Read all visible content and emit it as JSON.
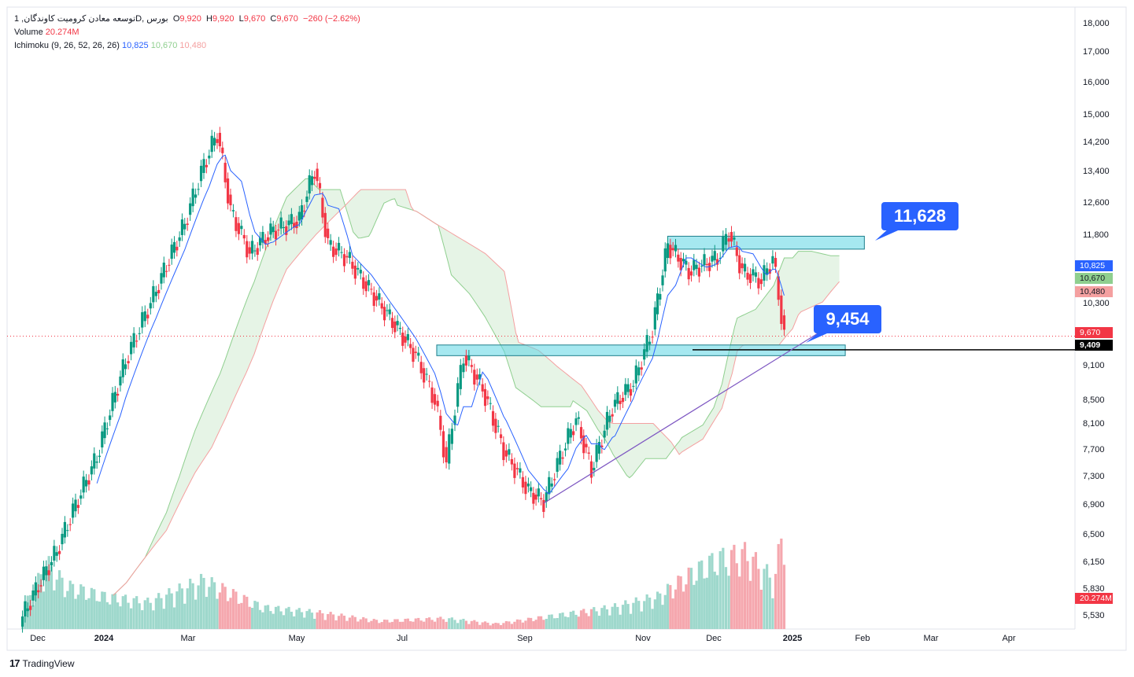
{
  "header": {
    "symbol": "توسعه معادن کرومیت کاوندگان, 1D, بورس",
    "open_label": "O",
    "open": "9,920",
    "high_label": "H",
    "high": "9,920",
    "low_label": "L",
    "low": "9,670",
    "close_label": "C",
    "close": "9,670",
    "change": "−260 (−2.62%)",
    "volume_label": "Volume",
    "volume_value": "20.274M",
    "ichimoku_label": "Ichimoku (9, 26, 52, 26, 26)",
    "ichimoku_values": [
      "10,825",
      "10,670",
      "10,480"
    ]
  },
  "chart_data": {
    "type": "candlestick",
    "title": "",
    "y_ticks": [
      "18,000",
      "17,000",
      "16,000",
      "15,000",
      "14,200",
      "13,400",
      "12,600",
      "11,800",
      "10,300",
      "9,100",
      "8,500",
      "8,100",
      "7,700",
      "7,300",
      "6,900",
      "6,500",
      "6,150",
      "5,830",
      "5,530"
    ],
    "x_ticks": [
      "Dec",
      "2024",
      "Mar",
      "May",
      "Jul",
      "Sep",
      "Nov",
      "Dec",
      "2025",
      "Feb",
      "Mar",
      "Apr"
    ],
    "ylim": [
      5530,
      18000
    ],
    "y_scale": "log",
    "price_series": [
      {
        "date": "2023-11-27",
        "close": 5530
      },
      {
        "date": "2023-12-15",
        "close": 6300
      },
      {
        "date": "2024-01-05",
        "close": 7600
      },
      {
        "date": "2024-01-20",
        "close": 9200
      },
      {
        "date": "2024-02-05",
        "close": 10600
      },
      {
        "date": "2024-02-20",
        "close": 12100
      },
      {
        "date": "2024-03-01",
        "close": 13600
      },
      {
        "date": "2024-03-08",
        "close": 14500
      },
      {
        "date": "2024-03-15",
        "close": 12400
      },
      {
        "date": "2024-03-25",
        "close": 11400
      },
      {
        "date": "2024-04-05",
        "close": 11900
      },
      {
        "date": "2024-04-20",
        "close": 12200
      },
      {
        "date": "2024-04-28",
        "close": 13500
      },
      {
        "date": "2024-05-05",
        "close": 11600
      },
      {
        "date": "2024-05-15",
        "close": 11300
      },
      {
        "date": "2024-05-25",
        "close": 10700
      },
      {
        "date": "2024-06-05",
        "close": 10100
      },
      {
        "date": "2024-06-20",
        "close": 9300
      },
      {
        "date": "2024-06-30",
        "close": 8500
      },
      {
        "date": "2024-07-06",
        "close": 7500
      },
      {
        "date": "2024-07-15",
        "close": 9300
      },
      {
        "date": "2024-07-25",
        "close": 8700
      },
      {
        "date": "2024-08-05",
        "close": 7700
      },
      {
        "date": "2024-08-18",
        "close": 7100
      },
      {
        "date": "2024-08-26",
        "close": 6950
      },
      {
        "date": "2024-09-05",
        "close": 7700
      },
      {
        "date": "2024-09-12",
        "close": 8200
      },
      {
        "date": "2024-09-20",
        "close": 7400
      },
      {
        "date": "2024-10-01",
        "close": 8400
      },
      {
        "date": "2024-10-12",
        "close": 8800
      },
      {
        "date": "2024-10-22",
        "close": 9800
      },
      {
        "date": "2024-10-30",
        "close": 11600
      },
      {
        "date": "2024-11-10",
        "close": 11000
      },
      {
        "date": "2024-11-25",
        "close": 11300
      },
      {
        "date": "2024-12-01",
        "close": 11900
      },
      {
        "date": "2024-12-08",
        "close": 11000
      },
      {
        "date": "2024-12-18",
        "close": 10800
      },
      {
        "date": "2024-12-24",
        "close": 11300
      },
      {
        "date": "2024-12-30",
        "close": 9670
      }
    ],
    "volume": [
      {
        "date": "2023-11-27",
        "value": 3.5
      },
      {
        "date": "2023-12-10",
        "value": 12
      },
      {
        "date": "2023-12-20",
        "value": 8
      },
      {
        "date": "2024-01-10",
        "value": 6
      },
      {
        "date": "2024-02-01",
        "value": 5
      },
      {
        "date": "2024-03-01",
        "value": 9
      },
      {
        "date": "2024-04-01",
        "value": 4
      },
      {
        "date": "2024-05-01",
        "value": 3
      },
      {
        "date": "2024-06-01",
        "value": 1.5
      },
      {
        "date": "2024-07-05",
        "value": 2
      },
      {
        "date": "2024-08-01",
        "value": 1
      },
      {
        "date": "2024-09-01",
        "value": 2.5
      },
      {
        "date": "2024-10-01",
        "value": 4
      },
      {
        "date": "2024-10-25",
        "value": 6
      },
      {
        "date": "2024-11-10",
        "value": 10
      },
      {
        "date": "2024-11-25",
        "value": 13
      },
      {
        "date": "2024-12-10",
        "value": 14
      },
      {
        "date": "2024-12-25",
        "value": 9
      },
      {
        "date": "2024-12-30",
        "value": 20.274
      }
    ],
    "zones": [
      {
        "from": 11500,
        "to": 11800,
        "start": "2024-10-30",
        "end": "2025-02-10",
        "label": "11,628"
      },
      {
        "from": 9300,
        "to": 9500,
        "start": "2024-07-01",
        "end": "2025-01-31",
        "label": "9,454"
      }
    ],
    "trendline": {
      "start": {
        "date": "2024-08-26",
        "price": 6930
      },
      "end": {
        "date": "2025-01-20",
        "price": 9800
      }
    },
    "last_price_label": "9,670",
    "level_label": "9,409",
    "volume_label": "20.274M",
    "colors": {
      "up": "#089981",
      "down": "#f23645",
      "tenkan": "#2962ff",
      "span_a": "#8fcf8f",
      "span_b": "#f4a0a0",
      "zone": "#5dd6e3",
      "trend": "#7e57c2"
    }
  },
  "footer": {
    "brand": "TradingView"
  }
}
